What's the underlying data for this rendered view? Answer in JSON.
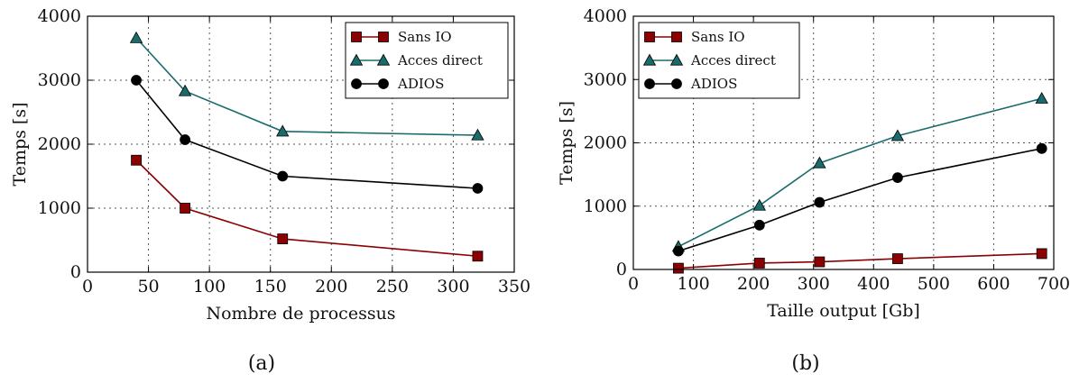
{
  "chart_data": [
    {
      "type": "line",
      "caption": "(a)",
      "xlabel": "Nombre de processus",
      "ylabel": "Temps [s]",
      "xlim": [
        0,
        350
      ],
      "ylim": [
        0,
        4000
      ],
      "xticks": [
        0,
        50,
        100,
        150,
        200,
        250,
        300,
        350
      ],
      "yticks": [
        0,
        1000,
        2000,
        3000,
        4000
      ],
      "grid": true,
      "legend_position": "top-right",
      "series": [
        {
          "name": "Sans IO",
          "marker": "square",
          "color": "#8b0000",
          "x": [
            40,
            80,
            160,
            320
          ],
          "y": [
            1750,
            1000,
            520,
            250
          ]
        },
        {
          "name": "Acces direct",
          "marker": "triangle",
          "color": "#1a6b6b",
          "x": [
            40,
            80,
            160,
            320
          ],
          "y": [
            3660,
            2830,
            2200,
            2140
          ]
        },
        {
          "name": "ADIOS",
          "marker": "circle",
          "color": "#000000",
          "x": [
            40,
            80,
            160,
            320
          ],
          "y": [
            3000,
            2070,
            1500,
            1310
          ]
        }
      ]
    },
    {
      "type": "line",
      "caption": "(b)",
      "xlabel": "Taille output [Gb]",
      "ylabel": "Temps [s]",
      "xlim": [
        0,
        700
      ],
      "ylim": [
        0,
        4000
      ],
      "xticks": [
        0,
        100,
        200,
        300,
        400,
        500,
        600,
        700
      ],
      "yticks": [
        0,
        1000,
        2000,
        3000,
        4000
      ],
      "grid": true,
      "legend_position": "top-left",
      "series": [
        {
          "name": "Sans IO",
          "marker": "square",
          "color": "#8b0000",
          "x": [
            75,
            210,
            310,
            440,
            680
          ],
          "y": [
            20,
            100,
            120,
            170,
            250
          ]
        },
        {
          "name": "Acces direct",
          "marker": "triangle",
          "color": "#1a6b6b",
          "x": [
            75,
            210,
            310,
            440,
            680
          ],
          "y": [
            360,
            1010,
            1680,
            2110,
            2700
          ]
        },
        {
          "name": "ADIOS",
          "marker": "circle",
          "color": "#000000",
          "x": [
            75,
            210,
            310,
            440,
            680
          ],
          "y": [
            290,
            700,
            1060,
            1450,
            1910
          ]
        }
      ]
    }
  ]
}
